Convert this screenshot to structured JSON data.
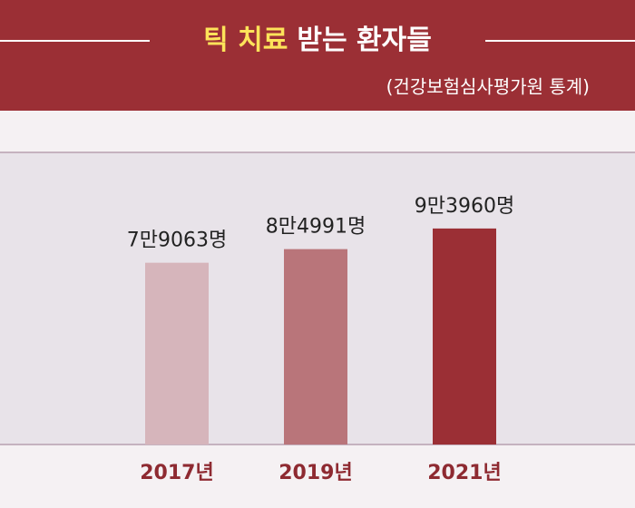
{
  "chart_data": {
    "type": "bar",
    "title_parts": [
      {
        "text": "틱 치료",
        "color": "#fde35a"
      },
      {
        "text": "받는 환자들",
        "color": "#ffffff"
      }
    ],
    "subtitle": "(건강보험심사평가원 통계)",
    "categories": [
      "2017년",
      "2019년",
      "2021년"
    ],
    "values": [
      79063,
      84991,
      93960
    ],
    "value_labels": [
      "7만9063명",
      "8만4991명",
      "9만3960명"
    ],
    "colors": [
      "#d6b5bb",
      "#b9757a",
      "#9b2f35"
    ],
    "ylim": [
      0,
      146000
    ]
  }
}
